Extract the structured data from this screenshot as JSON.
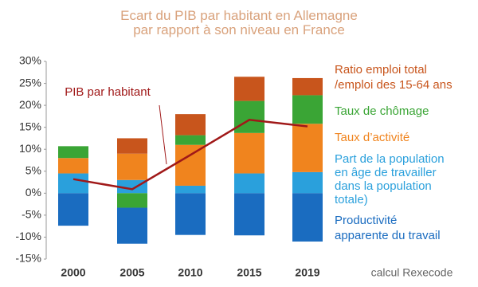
{
  "chart_data": {
    "type": "stacked-bar-line",
    "title": "Ecart du PIB par habitant en Allemagne\npar rapport à son niveau en France",
    "source": "calcul Rexecode",
    "categories": [
      "2000",
      "2005",
      "2010",
      "2015",
      "2019"
    ],
    "series": [
      {
        "name": "Productivité\napparente du travail",
        "color": "#1a6cc0",
        "values": [
          -7.4,
          -8.2,
          -9.5,
          -9.6,
          -11.0
        ]
      },
      {
        "name": "Part de la population\nen âge de travailler\ndans la population\ntotale)",
        "color": "#2aa0dc",
        "values": [
          4.5,
          3.0,
          1.7,
          4.5,
          4.8
        ]
      },
      {
        "name": "Taux d’activité",
        "color": "#f0841e",
        "values": [
          3.5,
          6.0,
          9.3,
          9.2,
          11.0
        ]
      },
      {
        "name": "Taux de chômage",
        "color": "#3aa535",
        "values": [
          2.7,
          -3.3,
          2.2,
          7.3,
          6.5
        ]
      },
      {
        "name": "Ratio emploi total\n/emploi des 15-64 ans",
        "color": "#c8551c",
        "values": [
          0,
          3.5,
          4.8,
          5.5,
          3.9
        ]
      }
    ],
    "line": {
      "name": "PIB par habitant",
      "color": "#a01818",
      "values": [
        3.2,
        0.9,
        8.7,
        16.7,
        15.2
      ]
    },
    "ylim": [
      -15,
      30
    ],
    "yticks": [
      {
        "value": -15,
        "label": "-15%"
      },
      {
        "value": -10,
        "label": "-10%"
      },
      {
        "value": -5,
        "label": "-5%"
      },
      {
        "value": 0,
        "label": "0%"
      },
      {
        "value": 5,
        "label": "5%"
      },
      {
        "value": 10,
        "label": "10%"
      },
      {
        "value": 15,
        "label": "15%"
      },
      {
        "value": 20,
        "label": "20%"
      },
      {
        "value": 25,
        "label": "25%"
      },
      {
        "value": 30,
        "label": "30%"
      }
    ]
  }
}
